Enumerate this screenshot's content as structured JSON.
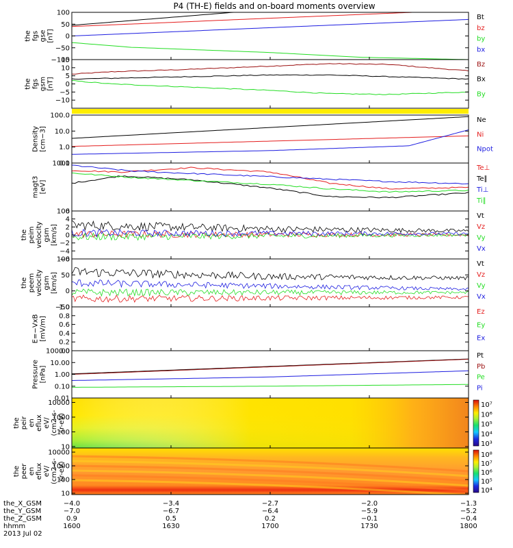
{
  "title": "P4 (TH-E) fields and on-board moments overview",
  "colors": {
    "black": "#000000",
    "red": "#e41c1c",
    "green": "#22dd22",
    "blue": "#1c1ce0",
    "darkred": "#9b1010",
    "yellow": "#ffee00"
  },
  "chart_data": [
    {
      "type": "line",
      "panel": "fgs_gse",
      "ylabel": [
        "the",
        "fgs",
        "gse",
        "[nT]"
      ],
      "ylim": [
        -100,
        100
      ],
      "log": false,
      "yticks": [
        "100",
        "50",
        "0",
        "−50",
        "−100"
      ],
      "ytick_values": [
        100,
        50,
        0,
        -50,
        -100
      ],
      "series": [
        {
          "name": "Bt",
          "color": "black",
          "x": [
            1600,
            1800
          ],
          "y": [
            45,
            180
          ]
        },
        {
          "name": "bz",
          "color": "red",
          "x": [
            1600,
            1800
          ],
          "y": [
            40,
            110
          ]
        },
        {
          "name": "by",
          "color": "green",
          "x": [
            1600,
            1630,
            1700,
            1745,
            1800
          ],
          "y": [
            -28,
            -48,
            -70,
            -90,
            -100
          ]
        },
        {
          "name": "bx",
          "color": "blue",
          "x": [
            1600,
            1800
          ],
          "y": [
            0,
            70
          ]
        }
      ]
    },
    {
      "type": "line",
      "panel": "fgs_gsm",
      "ylabel": [
        "the",
        "fgs",
        "gsm",
        "[nT]"
      ],
      "ylim": [
        -15,
        15
      ],
      "log": false,
      "yticks": [
        "15",
        "10",
        "5",
        "0",
        "−5",
        "−10"
      ],
      "ytick_values": [
        15,
        10,
        5,
        0,
        -5,
        -10
      ],
      "series": [
        {
          "name": "Bz",
          "color": "darkred",
          "x": [
            1600,
            1620,
            1660,
            1700,
            1730,
            1760,
            1800
          ],
          "y": [
            6,
            7.5,
            9,
            11,
            12.5,
            12,
            8
          ]
        },
        {
          "name": "Bx",
          "color": "black",
          "x": [
            1600,
            1620,
            1660,
            1700,
            1730,
            1760,
            1800
          ],
          "y": [
            3,
            3.5,
            4.5,
            5.5,
            5.5,
            4.5,
            3
          ]
        },
        {
          "name": "By",
          "color": "green",
          "x": [
            1600,
            1620,
            1660,
            1700,
            1730,
            1760,
            1800
          ],
          "y": [
            2,
            0,
            -2,
            -4,
            -6,
            -6.5,
            -5
          ]
        }
      ]
    },
    {
      "type": "line",
      "panel": "density",
      "ylabel": [
        "Density",
        "[cm−3]"
      ],
      "ylim": [
        0.1,
        100
      ],
      "log": true,
      "yticks": [
        "100.0",
        "10.0",
        "1.0",
        "0.1"
      ],
      "ytick_values": [
        100,
        10,
        1,
        0.1
      ],
      "series": [
        {
          "name": "Ne",
          "color": "black",
          "x": [
            1600,
            1800
          ],
          "y": [
            3.5,
            80
          ]
        },
        {
          "name": "Ni",
          "color": "red",
          "x": [
            1600,
            1800
          ],
          "y": [
            1.1,
            5
          ]
        },
        {
          "name": "Npot",
          "color": "blue",
          "x": [
            1600,
            1700,
            1770,
            1800
          ],
          "y": [
            0.35,
            0.6,
            1.2,
            12
          ]
        }
      ]
    },
    {
      "type": "line",
      "panel": "temperature",
      "ylabel": [
        "magt3",
        "[eV]"
      ],
      "ylim": [
        100,
        1000
      ],
      "log": true,
      "yticks": [
        "1000",
        "100"
      ],
      "ytick_values": [
        1000,
        100
      ],
      "series": [
        {
          "name": "Te⊥",
          "color": "red",
          "x": [
            1600,
            1625,
            1660,
            1700,
            1730,
            1760,
            1800
          ],
          "y": [
            700,
            650,
            800,
            650,
            380,
            290,
            310
          ]
        },
        {
          "name": "Te∥",
          "color": "black",
          "x": [
            1600,
            1625,
            1660,
            1700,
            1730,
            1760,
            1800
          ],
          "y": [
            380,
            540,
            450,
            300,
            200,
            190,
            240
          ]
        },
        {
          "name": "Ti⊥",
          "color": "blue",
          "x": [
            1600,
            1630,
            1700,
            1730,
            1760,
            1800
          ],
          "y": [
            900,
            680,
            520,
            460,
            410,
            370
          ]
        },
        {
          "name": "Ti∥",
          "color": "green",
          "x": [
            1600,
            1630,
            1700,
            1730,
            1760,
            1800
          ],
          "y": [
            620,
            500,
            360,
            290,
            250,
            270
          ]
        }
      ]
    },
    {
      "type": "line",
      "panel": "peim_velocity",
      "ylabel": [
        "the",
        "peim",
        "velocity",
        "gsm",
        "[km/s]"
      ],
      "ylim": [
        -6,
        6
      ],
      "log": false,
      "yticks": [
        "6",
        "4",
        "2",
        "0",
        "−2",
        "−4",
        "−6"
      ],
      "ytick_values": [
        6,
        4,
        2,
        0,
        -2,
        -4,
        -6
      ],
      "series": [
        {
          "name": "Vt",
          "color": "black",
          "x": [
            1600,
            1650,
            1700,
            1800
          ],
          "y": [
            2.5,
            2,
            1.5,
            1
          ]
        },
        {
          "name": "Vz",
          "color": "red",
          "x": [
            1600,
            1800
          ],
          "y": [
            0.2,
            0
          ]
        },
        {
          "name": "Vy",
          "color": "green",
          "x": [
            1600,
            1800
          ],
          "y": [
            -0.5,
            0
          ]
        },
        {
          "name": "Vx",
          "color": "blue",
          "x": [
            1600,
            1800
          ],
          "y": [
            0.5,
            0.3
          ]
        }
      ]
    },
    {
      "type": "line",
      "panel": "peem_velocity",
      "ylabel": [
        "the",
        "peem",
        "velocity",
        "gsm",
        "[km/s]"
      ],
      "ylim": [
        -50,
        100
      ],
      "log": false,
      "yticks": [
        "100",
        "50",
        "0",
        "−50"
      ],
      "ytick_values": [
        100,
        50,
        0,
        -50
      ],
      "series": [
        {
          "name": "Vt",
          "color": "black",
          "x": [
            1600,
            1700,
            1800
          ],
          "y": [
            60,
            45,
            40
          ]
        },
        {
          "name": "Vz",
          "color": "red",
          "x": [
            1600,
            1800
          ],
          "y": [
            -25,
            -20
          ]
        },
        {
          "name": "Vy",
          "color": "green",
          "x": [
            1600,
            1800
          ],
          "y": [
            -5,
            -5
          ]
        },
        {
          "name": "Vx",
          "color": "blue",
          "x": [
            1600,
            1700,
            1800
          ],
          "y": [
            25,
            15,
            5
          ]
        }
      ]
    },
    {
      "type": "line",
      "panel": "efield",
      "ylabel": [
        "E=−VxB",
        "[mV/m]"
      ],
      "ylim": [
        0,
        1
      ],
      "log": false,
      "yticks": [
        "1.0",
        "0.8",
        "0.6",
        "0.4",
        "0.2",
        "0.0"
      ],
      "ytick_values": [
        1,
        0.8,
        0.6,
        0.4,
        0.2,
        0
      ],
      "series": [
        {
          "name": "Ez",
          "color": "red",
          "x": [],
          "y": []
        },
        {
          "name": "Ey",
          "color": "green",
          "x": [],
          "y": []
        },
        {
          "name": "Ex",
          "color": "blue",
          "x": [],
          "y": []
        }
      ]
    },
    {
      "type": "line",
      "panel": "pressure",
      "ylabel": [
        "Pressure",
        "[nPa]"
      ],
      "ylim": [
        0.01,
        100
      ],
      "log": true,
      "yticks": [
        "100.00",
        "10.00",
        "1.00",
        "0.10",
        "0.01"
      ],
      "ytick_values": [
        100,
        10,
        1,
        0.1,
        0.01
      ],
      "series": [
        {
          "name": "Pt",
          "color": "black",
          "x": [
            1600,
            1800
          ],
          "y": [
            1.1,
            20
          ]
        },
        {
          "name": "Pb",
          "color": "darkred",
          "x": [
            1600,
            1800
          ],
          "y": [
            1.0,
            19
          ]
        },
        {
          "name": "Pe",
          "color": "green",
          "x": [
            1600,
            1700,
            1800
          ],
          "y": [
            0.08,
            0.1,
            0.14
          ]
        },
        {
          "name": "Pi",
          "color": "blue",
          "x": [
            1600,
            1700,
            1800
          ],
          "y": [
            0.3,
            0.6,
            2
          ]
        }
      ]
    },
    {
      "type": "heatmap",
      "panel": "peir_en_eflux",
      "ylabel": [
        "the",
        "peir",
        "en",
        "eflux",
        "eV/",
        "(cm2-s-",
        "sr-eV)"
      ],
      "ylim": [
        8,
        20000
      ],
      "log": true,
      "yticks": [
        "10000",
        "1000",
        "100",
        "10"
      ],
      "ytick_values": [
        10000,
        1000,
        100,
        10
      ],
      "colorbar": [
        "10⁷",
        "10⁶",
        "10⁵",
        "10⁴",
        "10³"
      ]
    },
    {
      "type": "heatmap",
      "panel": "peer_en_eflux",
      "ylabel": [
        "the",
        "peer",
        "en",
        "eflux",
        "eV/",
        "(cm2-s-",
        "sr-eV)"
      ],
      "ylim": [
        8,
        20000
      ],
      "log": true,
      "yticks": [
        "10000",
        "1000",
        "100",
        "10"
      ],
      "ytick_values": [
        10000,
        1000,
        100,
        10
      ],
      "colorbar": [
        "10⁸",
        "10⁷",
        "10⁶",
        "10⁵",
        "10⁴"
      ]
    }
  ],
  "xaxis": {
    "rows": [
      {
        "label": "the_X_GSM",
        "values": [
          "−4.0",
          "−3.4",
          "−2.7",
          "−2.0",
          "−1.3"
        ]
      },
      {
        "label": "the_Y_GSM",
        "values": [
          "−7.0",
          "−6.7",
          "−6.4",
          "−5.9",
          "−5.2"
        ]
      },
      {
        "label": "the_Z_GSM",
        "values": [
          "0.9",
          "0.5",
          "0.2",
          "−0.1",
          "−0.4"
        ]
      },
      {
        "label": "hhmm",
        "values": [
          "1600",
          "1630",
          "1700",
          "1730",
          "1800"
        ]
      }
    ],
    "date": "2013 Jul 02",
    "time_range": [
      1600,
      1800
    ]
  }
}
